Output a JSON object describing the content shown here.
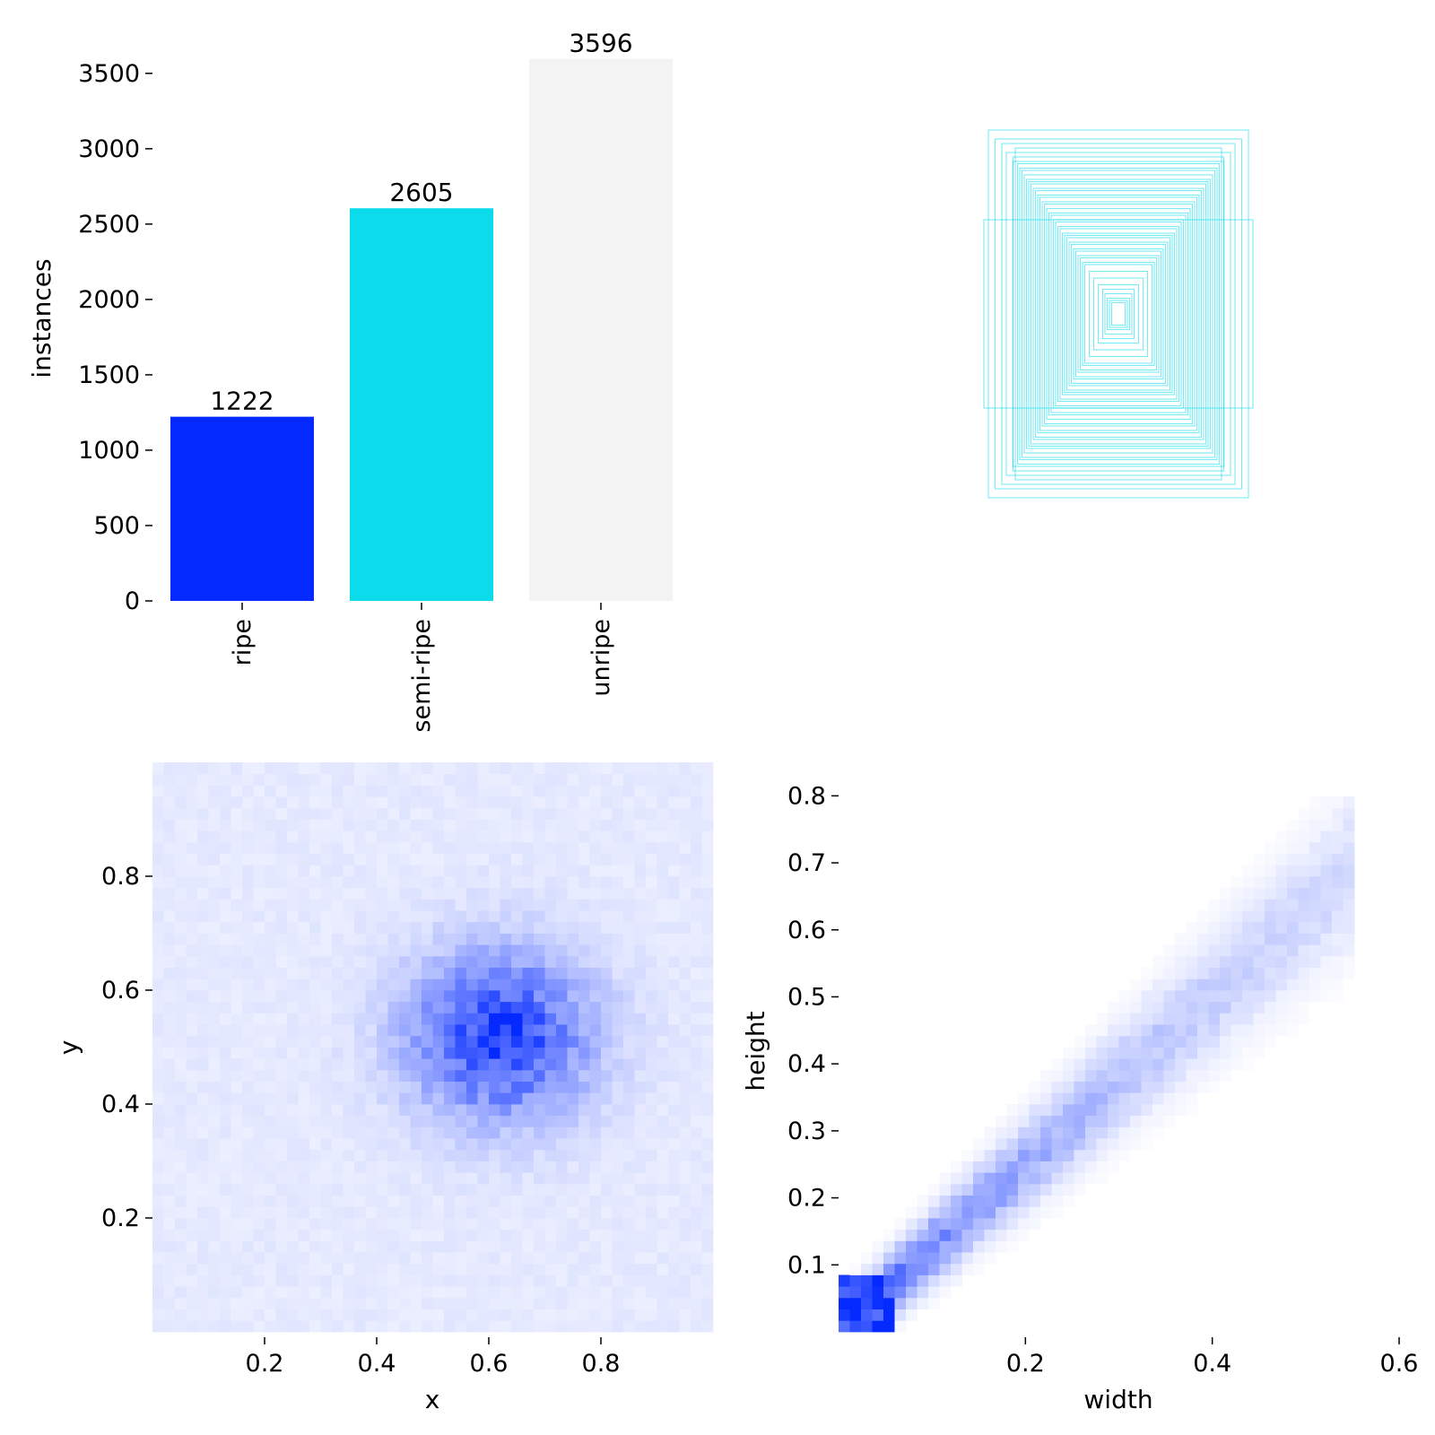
{
  "chart_data": [
    {
      "type": "bar",
      "ylabel": "instances",
      "xlabel": "",
      "categories": [
        "ripe",
        "semi-ripe",
        "unripe"
      ],
      "values": [
        1222,
        2605,
        3596
      ],
      "value_labels": [
        "1222",
        "2605",
        "3596"
      ],
      "colors": [
        "#042AFF",
        "#0BDBEB",
        "#F3F3F3"
      ],
      "ylim": [
        0,
        3600
      ],
      "yticks": [
        0,
        500,
        1000,
        1500,
        2000,
        2500,
        3000,
        3500
      ],
      "ytick_labels": [
        "0",
        "500",
        "1000",
        "1500",
        "2000",
        "2500",
        "3000",
        "3500"
      ],
      "grid": false
    },
    {
      "type": "other",
      "description": "overlaid bounding boxes centered at a common point",
      "color": "#0BDBEB",
      "boxes_wh": [
        [
          0.58,
          0.82
        ],
        [
          0.55,
          0.78
        ],
        [
          0.5,
          0.72
        ],
        [
          0.47,
          0.7
        ],
        [
          0.47,
          0.68
        ],
        [
          0.45,
          0.67
        ],
        [
          0.44,
          0.65
        ],
        [
          0.43,
          0.64
        ],
        [
          0.42,
          0.62
        ],
        [
          0.41,
          0.6
        ],
        [
          0.4,
          0.59
        ],
        [
          0.39,
          0.58
        ],
        [
          0.38,
          0.56
        ],
        [
          0.37,
          0.55
        ],
        [
          0.36,
          0.53
        ],
        [
          0.35,
          0.52
        ],
        [
          0.34,
          0.5
        ],
        [
          0.33,
          0.49
        ],
        [
          0.32,
          0.47
        ],
        [
          0.31,
          0.45
        ],
        [
          0.3,
          0.44
        ],
        [
          0.29,
          0.42
        ],
        [
          0.28,
          0.41
        ],
        [
          0.27,
          0.39
        ],
        [
          0.26,
          0.38
        ],
        [
          0.25,
          0.36
        ],
        [
          0.24,
          0.35
        ],
        [
          0.23,
          0.34
        ],
        [
          0.22,
          0.32
        ],
        [
          0.21,
          0.31
        ],
        [
          0.2,
          0.29
        ],
        [
          0.19,
          0.28
        ],
        [
          0.18,
          0.26
        ],
        [
          0.17,
          0.25
        ],
        [
          0.16,
          0.23
        ],
        [
          0.15,
          0.22
        ],
        [
          0.13,
          0.19
        ],
        [
          0.11,
          0.16
        ],
        [
          0.09,
          0.13
        ],
        [
          0.07,
          0.11
        ],
        [
          0.06,
          0.09
        ],
        [
          0.05,
          0.07
        ],
        [
          0.04,
          0.06
        ],
        [
          0.03,
          0.05
        ],
        [
          0.6,
          0.42
        ],
        [
          0.46,
          0.74
        ],
        [
          0.52,
          0.76
        ]
      ]
    },
    {
      "type": "heatmap",
      "description": "2D histogram of box centers",
      "xlabel": "x",
      "ylabel": "y",
      "xlim": [
        0,
        1
      ],
      "ylim": [
        0,
        1
      ],
      "xticks": [
        0.2,
        0.4,
        0.6,
        0.8
      ],
      "xtick_labels": [
        "0.2",
        "0.4",
        "0.6",
        "0.8"
      ],
      "yticks": [
        0.2,
        0.4,
        0.6,
        0.8
      ],
      "ytick_labels": [
        "0.2",
        "0.4",
        "0.6",
        "0.8"
      ],
      "peak": [
        0.62,
        0.52
      ],
      "spread": [
        0.11,
        0.1
      ],
      "bins": 50,
      "color": "#042AFF"
    },
    {
      "type": "heatmap",
      "description": "2D histogram of box width vs height",
      "xlabel": "width",
      "ylabel": "height",
      "xlim": [
        0,
        0.6
      ],
      "ylim": [
        0,
        0.85
      ],
      "xticks": [
        0.2,
        0.4,
        0.6
      ],
      "xtick_labels": [
        "0.2",
        "0.4",
        "0.6"
      ],
      "yticks": [
        0.1,
        0.2,
        0.3,
        0.4,
        0.5,
        0.6,
        0.7,
        0.8
      ],
      "ytick_labels": [
        "0.1",
        "0.2",
        "0.3",
        "0.4",
        "0.5",
        "0.6",
        "0.7",
        "0.8"
      ],
      "trend_slope": 1.25,
      "densest_point": [
        0.03,
        0.04
      ],
      "bins": 50,
      "color": "#042AFF"
    }
  ]
}
